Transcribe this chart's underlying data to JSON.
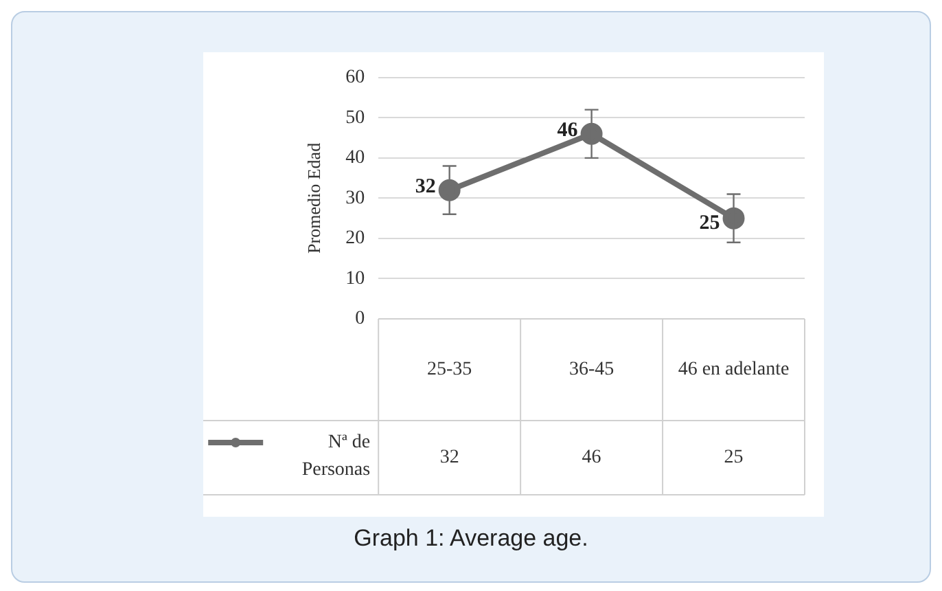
{
  "chart_data": {
    "type": "line",
    "ylabel": "Promedio Edad",
    "categories": [
      "25-35",
      "36-45",
      "46 en adelante"
    ],
    "series": [
      {
        "name": "Nª de Personas",
        "color": "#6e6e6e",
        "values": [
          32,
          46,
          25
        ],
        "value_labels": [
          "32",
          "46",
          "25"
        ],
        "errors": [
          6,
          6,
          6
        ]
      }
    ],
    "ylim": [
      0,
      60
    ],
    "yticks": [
      0,
      10,
      20,
      30,
      40,
      50,
      60
    ],
    "grid": "y",
    "legend": "bottom left",
    "marker": "circle",
    "line_style": "solid",
    "annotations": [
      {
        "text": "32",
        "x": "25-35"
      },
      {
        "text": "46",
        "x": "36-45"
      },
      {
        "text": "25",
        "x": "46 en adelante"
      },
      "Graph 1: Average age."
    ]
  }
}
